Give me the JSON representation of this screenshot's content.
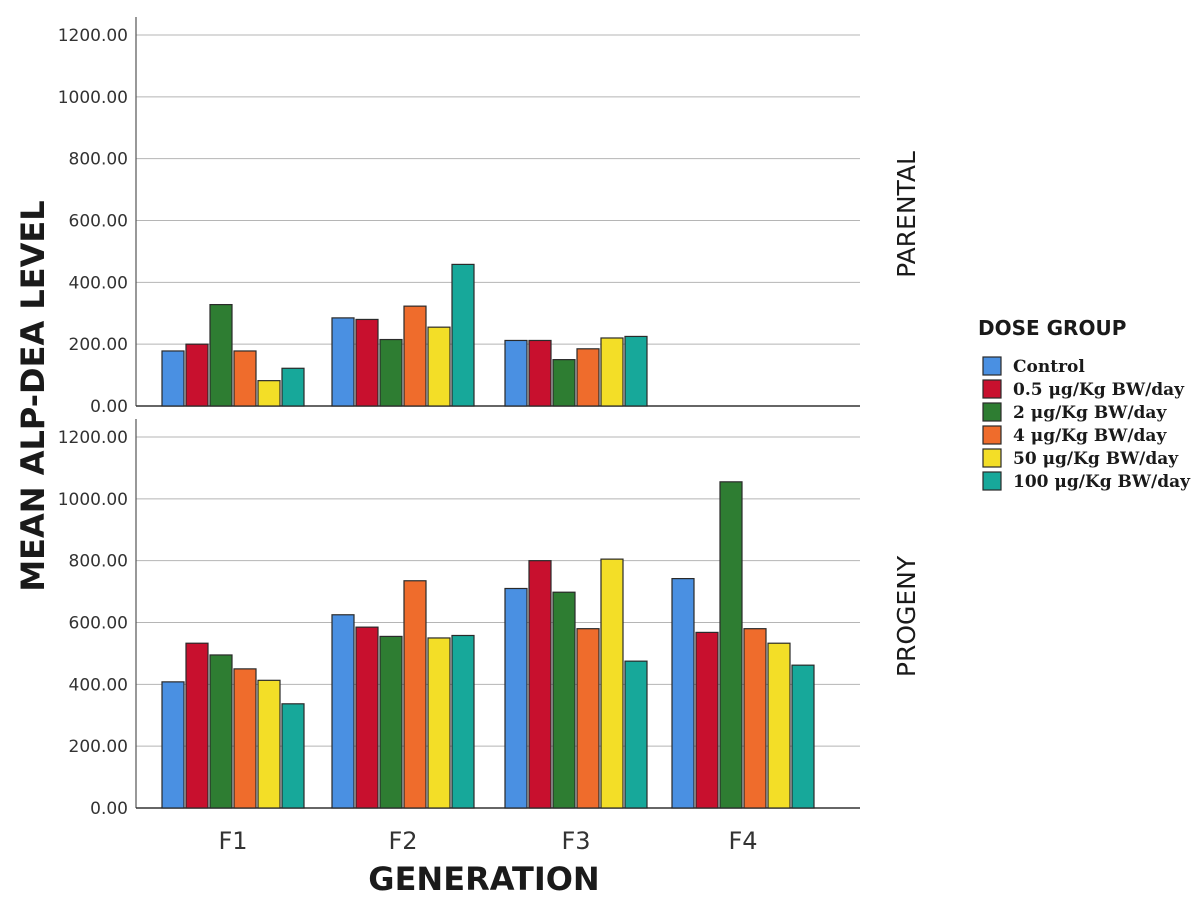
{
  "chart_data": {
    "type": "bar",
    "xlabel": "GENERATION",
    "ylabel": "MEAN ALP-DEA LEVEL",
    "categories": [
      "F1",
      "F2",
      "F3",
      "F4"
    ],
    "ylim": [
      0,
      1200
    ],
    "yticks": [
      "0.00",
      "200.00",
      "400.00",
      "600.00",
      "800.00",
      "1000.00",
      "1200.00"
    ],
    "grid": true,
    "legend": {
      "title": "DOSE GROUP",
      "placement": "right",
      "entries": [
        "Control",
        "0.5 μg/Kg BW/day",
        "2 μg/Kg BW/day",
        "4 μg/Kg BW/day",
        "50 μg/Kg BW/day",
        "100 μg/Kg BW/day"
      ]
    },
    "colors": [
      "#4a90e2",
      "#c8102e",
      "#2e7d32",
      "#ef6c2c",
      "#f3de27",
      "#17a89a"
    ],
    "panels": [
      {
        "label": "PARENTAL",
        "series": [
          {
            "name": "Control",
            "values": [
              178,
              285,
              212,
              null
            ]
          },
          {
            "name": "0.5 μg/Kg BW/day",
            "values": [
              200,
              280,
              212,
              null
            ]
          },
          {
            "name": "2 μg/Kg BW/day",
            "values": [
              328,
              215,
              150,
              null
            ]
          },
          {
            "name": "4 μg/Kg BW/day",
            "values": [
              178,
              323,
              185,
              null
            ]
          },
          {
            "name": "50 μg/Kg BW/day",
            "values": [
              82,
              255,
              220,
              null
            ]
          },
          {
            "name": "100 μg/Kg BW/day",
            "values": [
              122,
              458,
              225,
              null
            ]
          }
        ]
      },
      {
        "label": "PROGENY",
        "series": [
          {
            "name": "Control",
            "values": [
              408,
              625,
              710,
              742
            ]
          },
          {
            "name": "0.5 μg/Kg BW/day",
            "values": [
              533,
              585,
              800,
              568
            ]
          },
          {
            "name": "2 μg/Kg BW/day",
            "values": [
              495,
              555,
              698,
              1055
            ]
          },
          {
            "name": "4 μg/Kg BW/day",
            "values": [
              450,
              735,
              580,
              580
            ]
          },
          {
            "name": "50 μg/Kg BW/day",
            "values": [
              413,
              550,
              805,
              533
            ]
          },
          {
            "name": "100 μg/Kg BW/day",
            "values": [
              337,
              558,
              475,
              462
            ]
          }
        ]
      }
    ]
  }
}
